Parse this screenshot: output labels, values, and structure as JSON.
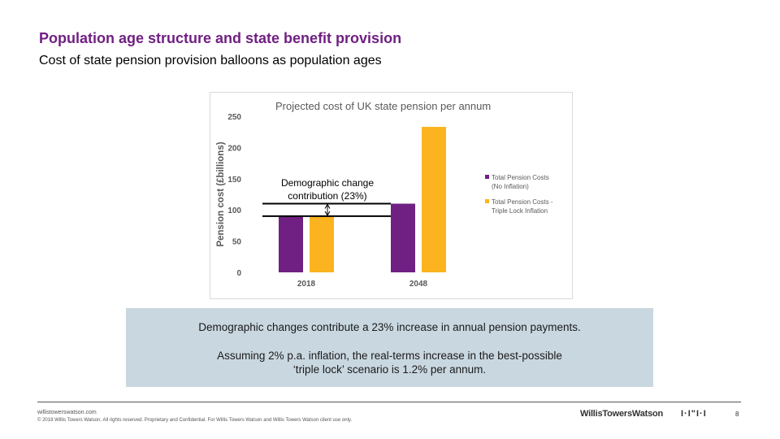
{
  "slide": {
    "title": "Population age structure and state benefit provision",
    "subtitle": "Cost of state pension provision balloons as population ages"
  },
  "chart_data": {
    "type": "bar",
    "title": "Projected cost of UK state pension per annum",
    "xlabel": "",
    "ylabel": "Pension cost (£billions)",
    "ylim": [
      0,
      250
    ],
    "yticks": [
      0,
      50,
      100,
      150,
      200,
      250
    ],
    "categories": [
      "2018",
      "2048"
    ],
    "series": [
      {
        "name": "Total Pension Costs (No Inflation)",
        "color": "#702082",
        "values": [
          90,
          110
        ]
      },
      {
        "name": "Total Pension Costs - Triple Lock Inflation",
        "color": "#fbb41f",
        "values": [
          90,
          233
        ]
      }
    ],
    "legend_position": "right",
    "annotation": "Demographic change contribution (23%)"
  },
  "callout": {
    "line1": "Demographic changes contribute a 23% increase in annual pension payments.",
    "line2": "Assuming 2% p.a. inflation, the real-terms increase in the best-possible",
    "line3": "‘triple lock’ scenario is 1.2% per annum."
  },
  "footer": {
    "url": "willistowerswatson.com",
    "copyright": "© 2018 Willis Towers Watson. All rights reserved. Proprietary and Confidential. For Willis Towers Watson and Willis Towers Watson client use only.",
    "logo": "WillisTowersWatson",
    "logo_mark": "I·I\"I·I",
    "page_number": "8"
  },
  "colors": {
    "title": "#702082",
    "callout_bg": "#c9d7e0"
  }
}
